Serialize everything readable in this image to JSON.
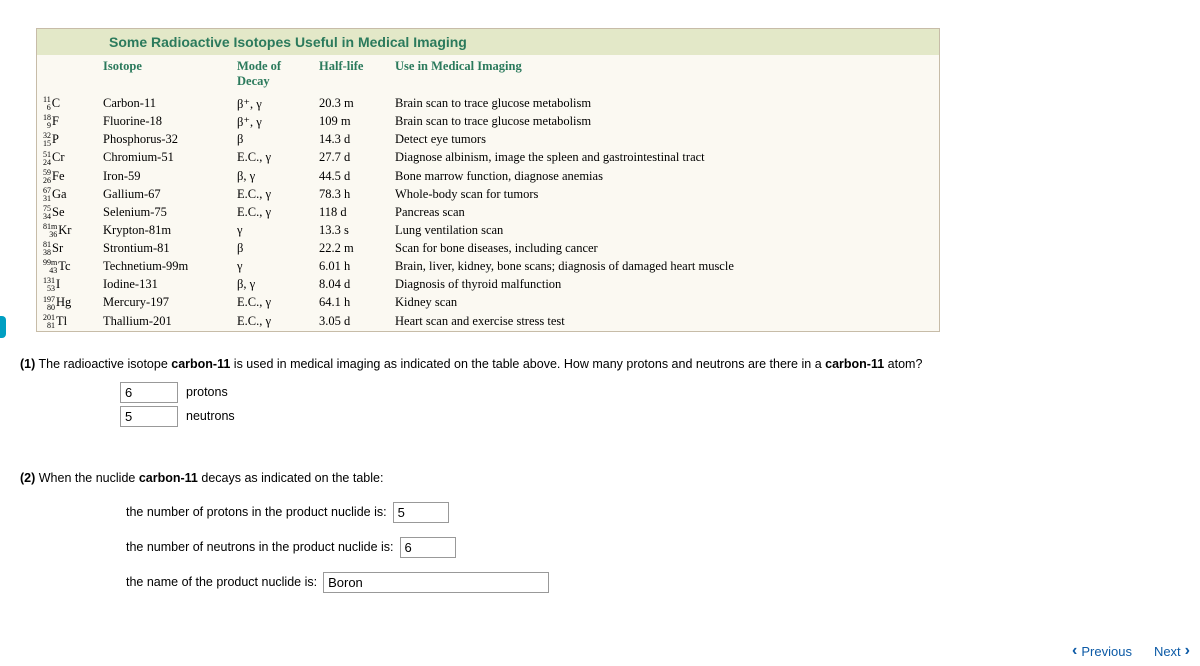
{
  "table": {
    "title": "Some Radioactive Isotopes Useful in Medical Imaging",
    "columns": {
      "c1": "",
      "c2": "Isotope",
      "c3": "Mode of Decay",
      "c4": "Half-life",
      "c5": "Use in Medical Imaging"
    },
    "col_widths": {
      "c1": "60px",
      "c2": "134px",
      "c3": "82px",
      "c4": "76px",
      "c5": "auto"
    },
    "rows": [
      {
        "sym_top": "11",
        "sym_bot": "6",
        "sym_el": "C",
        "name": "Carbon-11",
        "decay": "β⁺, γ",
        "half": "20.3 m",
        "use": "Brain scan to trace glucose metabolism"
      },
      {
        "sym_top": "18",
        "sym_bot": "9",
        "sym_el": "F",
        "name": "Fluorine-18",
        "decay": "β⁺, γ",
        "half": "109 m",
        "use": "Brain scan to trace glucose metabolism"
      },
      {
        "sym_top": "32",
        "sym_bot": "15",
        "sym_el": "P",
        "name": "Phosphorus-32",
        "decay": "β",
        "half": "14.3 d",
        "use": "Detect eye tumors"
      },
      {
        "sym_top": "51",
        "sym_bot": "24",
        "sym_el": "Cr",
        "name": "Chromium-51",
        "decay": "E.C., γ",
        "half": "27.7 d",
        "use": "Diagnose albinism, image the spleen and gastrointestinal tract"
      },
      {
        "sym_top": "59",
        "sym_bot": "26",
        "sym_el": "Fe",
        "name": "Iron-59",
        "decay": "β, γ",
        "half": "44.5 d",
        "use": "Bone marrow function, diagnose anemias"
      },
      {
        "sym_top": "67",
        "sym_bot": "31",
        "sym_el": "Ga",
        "name": "Gallium-67",
        "decay": "E.C., γ",
        "half": "78.3 h",
        "use": "Whole-body scan for tumors"
      },
      {
        "sym_top": "75",
        "sym_bot": "34",
        "sym_el": "Se",
        "name": "Selenium-75",
        "decay": "E.C., γ",
        "half": "118 d",
        "use": "Pancreas scan"
      },
      {
        "sym_top": "81m",
        "sym_bot": "36",
        "sym_el": "Kr",
        "name": "Krypton-81m",
        "decay": "γ",
        "half": "13.3 s",
        "use": "Lung ventilation scan"
      },
      {
        "sym_top": "81",
        "sym_bot": "38",
        "sym_el": "Sr",
        "name": "Strontium-81",
        "decay": "β",
        "half": "22.2 m",
        "use": "Scan for bone diseases, including cancer"
      },
      {
        "sym_top": "99m",
        "sym_bot": "43",
        "sym_el": "Tc",
        "name": "Technetium-99m",
        "decay": "γ",
        "half": "6.01 h",
        "use": "Brain, liver, kidney, bone scans; diagnosis of damaged heart muscle"
      },
      {
        "sym_top": "131",
        "sym_bot": "53",
        "sym_el": "I",
        "name": "Iodine-131",
        "decay": "β, γ",
        "half": "8.04 d",
        "use": "Diagnosis of thyroid malfunction"
      },
      {
        "sym_top": "197",
        "sym_bot": "80",
        "sym_el": "Hg",
        "name": "Mercury-197",
        "decay": "E.C., γ",
        "half": "64.1 h",
        "use": "Kidney scan"
      },
      {
        "sym_top": "201",
        "sym_bot": "81",
        "sym_el": "Tl",
        "name": "Thallium-201",
        "decay": "E.C., γ",
        "half": "3.05 d",
        "use": "Heart scan and exercise stress test"
      }
    ]
  },
  "q1": {
    "label_num": "(1)",
    "text_a": " The radioactive isotope ",
    "bold_a": "carbon-11",
    "text_b": " is used in medical imaging as indicated on the table above. How many protons and neutrons are there in a ",
    "bold_b": "carbon-11",
    "text_c": " atom?",
    "protons_value": "6",
    "protons_label": "protons",
    "neutrons_value": "5",
    "neutrons_label": "neutrons"
  },
  "q2": {
    "label_num": "(2)",
    "text_a": " When the nuclide ",
    "bold_a": "carbon-11",
    "text_b": " decays as indicated on the table:",
    "line1": "the number of protons in the product nuclide is:",
    "line1_value": "5",
    "line2": "the number of neutrons in the product nuclide is:",
    "line2_value": "6",
    "line3": "the name of the product nuclide is:",
    "line3_value": "Boron"
  },
  "nav": {
    "prev": "Previous",
    "next": "Next"
  },
  "colors": {
    "title_bg": "#e3e8c8",
    "title_fg": "#2b7a5c",
    "table_bg": "#fbf9f2",
    "table_border": "#c7bca8",
    "link": "#0c5aa6",
    "edge": "#009fc2"
  }
}
